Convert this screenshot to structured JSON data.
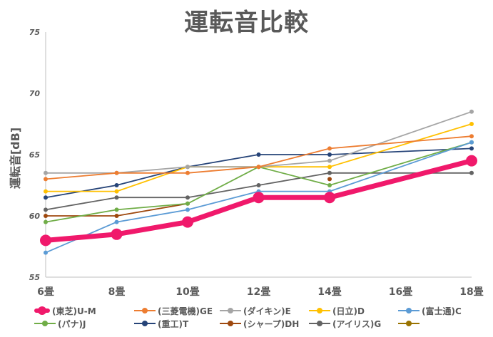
{
  "chart_data": {
    "type": "line",
    "title": "運転音比較",
    "ylabel": "運転音[dB]",
    "xlabel": "",
    "ylim": [
      55,
      75
    ],
    "yticks": [
      55,
      60,
      65,
      70,
      75
    ],
    "categories": [
      "6畳",
      "8畳",
      "10畳",
      "12畳",
      "14畳",
      "16畳",
      "18畳"
    ],
    "grid": "vertical",
    "legend": "bottom",
    "series": [
      {
        "name": "(東芝)U-M",
        "color": "#F0196B",
        "bold": true,
        "values": [
          58,
          58.5,
          59.5,
          61.5,
          61.5,
          null,
          64.5
        ]
      },
      {
        "name": "(三菱電機)GE",
        "color": "#ED7D31",
        "values": [
          63,
          63.5,
          63.5,
          64,
          65.5,
          null,
          66.5
        ]
      },
      {
        "name": "(ダイキン)E",
        "color": "#A5A5A5",
        "values": [
          63.5,
          63.5,
          64,
          64,
          64.5,
          null,
          68.5
        ]
      },
      {
        "name": "(日立)D",
        "color": "#FFC000",
        "values": [
          62,
          62,
          64,
          64,
          64,
          null,
          67.5
        ]
      },
      {
        "name": "(富士通)C",
        "color": "#5B9BD5",
        "values": [
          57,
          59.5,
          60.5,
          62,
          62,
          null,
          66
        ]
      },
      {
        "name": "(パナ)J",
        "color": "#70AD47",
        "values": [
          59.5,
          60.5,
          61,
          64,
          62.5,
          null,
          66
        ]
      },
      {
        "name": "(重工)T",
        "color": "#264478",
        "values": [
          61.5,
          62.5,
          64,
          65,
          65,
          null,
          65.5
        ]
      },
      {
        "name": "(シャープ)DH",
        "color": "#9E480E",
        "values": [
          60,
          60,
          61,
          null,
          63,
          null,
          null
        ]
      },
      {
        "name": "(アイリス)G",
        "color": "#636363",
        "values": [
          60.5,
          61.5,
          61.5,
          62.5,
          63.5,
          null,
          63.5
        ]
      },
      {
        "name": "",
        "color": "#997300",
        "values": [
          null,
          null,
          null,
          null,
          null,
          null,
          null
        ]
      }
    ]
  }
}
